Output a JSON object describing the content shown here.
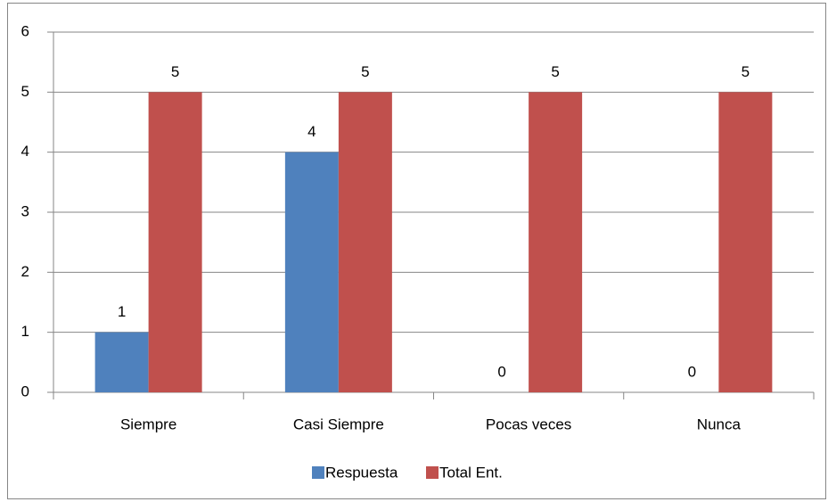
{
  "chart_data": {
    "type": "bar",
    "categories": [
      "Siempre",
      "Casi Siempre",
      "Pocas veces",
      "Nunca"
    ],
    "series": [
      {
        "name": "Respuesta",
        "color": "#4f81bd",
        "values": [
          1,
          4,
          0,
          0
        ]
      },
      {
        "name": "Total Ent.",
        "color": "#c0504d",
        "values": [
          5,
          5,
          5,
          5
        ]
      }
    ],
    "ylim": [
      0,
      6
    ],
    "yticks": [
      0,
      1,
      2,
      3,
      4,
      5,
      6
    ],
    "grid": true,
    "legend": "bottom",
    "data_labels": true
  }
}
